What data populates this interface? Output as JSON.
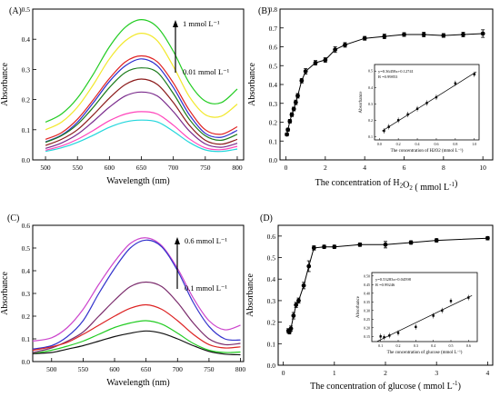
{
  "chart_data": [
    {
      "panel": "(A)",
      "type": "line",
      "xlabel": "Wavelength (nm)",
      "ylabel": "Absorbance",
      "xlim": [
        480,
        810
      ],
      "ylim": [
        0,
        0.5
      ],
      "xticks": [
        500,
        550,
        600,
        650,
        700,
        750,
        800
      ],
      "yticks": [
        0.0,
        0.1,
        0.2,
        0.3,
        0.4,
        0.5
      ],
      "x": [
        500,
        525,
        550,
        575,
        600,
        625,
        650,
        675,
        700,
        725,
        750,
        775,
        800
      ],
      "annotations": [
        {
          "text": "1 mmol L⁻¹"
        },
        {
          "text": "0.01 mmol L⁻¹"
        }
      ],
      "series": [
        {
          "color": "#22cc22",
          "values": [
            0.125,
            0.152,
            0.205,
            0.285,
            0.375,
            0.44,
            0.465,
            0.44,
            0.36,
            0.255,
            0.195,
            0.19,
            0.235
          ]
        },
        {
          "color": "#f2e82b",
          "values": [
            0.1,
            0.125,
            0.175,
            0.25,
            0.335,
            0.395,
            0.42,
            0.395,
            0.31,
            0.21,
            0.15,
            0.145,
            0.185
          ]
        },
        {
          "color": "#e02020",
          "values": [
            0.068,
            0.09,
            0.135,
            0.2,
            0.27,
            0.325,
            0.345,
            0.325,
            0.255,
            0.165,
            0.1,
            0.085,
            0.11
          ]
        },
        {
          "color": "#2c2ccc",
          "values": [
            0.06,
            0.082,
            0.125,
            0.19,
            0.26,
            0.312,
            0.335,
            0.312,
            0.24,
            0.15,
            0.088,
            0.075,
            0.098
          ]
        },
        {
          "color": "#1a7a1a",
          "values": [
            0.058,
            0.08,
            0.118,
            0.175,
            0.24,
            0.29,
            0.305,
            0.29,
            0.22,
            0.135,
            0.08,
            0.065,
            0.085
          ]
        },
        {
          "color": "#8b1a1a",
          "values": [
            0.048,
            0.068,
            0.1,
            0.15,
            0.205,
            0.25,
            0.268,
            0.25,
            0.19,
            0.115,
            0.065,
            0.052,
            0.068
          ]
        },
        {
          "color": "#7a2b8c",
          "values": [
            0.038,
            0.056,
            0.085,
            0.128,
            0.175,
            0.212,
            0.225,
            0.212,
            0.16,
            0.096,
            0.053,
            0.042,
            0.055
          ]
        },
        {
          "color": "#ff44bb",
          "values": [
            0.032,
            0.046,
            0.068,
            0.098,
            0.13,
            0.152,
            0.16,
            0.152,
            0.115,
            0.07,
            0.04,
            0.034,
            0.045
          ]
        },
        {
          "color": "#22d6dc",
          "values": [
            0.028,
            0.04,
            0.058,
            0.082,
            0.108,
            0.126,
            0.132,
            0.126,
            0.095,
            0.058,
            0.033,
            0.028,
            0.036
          ]
        }
      ]
    },
    {
      "panel": "(B)",
      "type": "line",
      "xlabel_main": "The concentration of H",
      "xlabel_sub": "2",
      "xlabel_mid": "O",
      "xlabel_sub2": "2",
      "xlabel_end": " ( mmol L",
      "xlabel_sup": "-1",
      "xlabel_close": ")",
      "ylabel": "Absorbance",
      "xlim": [
        -0.3,
        10.5
      ],
      "ylim": [
        0.0,
        0.8
      ],
      "xticks": [
        0,
        2,
        4,
        6,
        8,
        10
      ],
      "yticks": [
        0.0,
        0.1,
        0.2,
        0.3,
        0.4,
        0.5,
        0.6,
        0.7,
        0.8
      ],
      "x": [
        0.05,
        0.1,
        0.2,
        0.3,
        0.4,
        0.5,
        0.6,
        0.8,
        1.0,
        1.5,
        2.0,
        2.5,
        3.0,
        4.0,
        5.0,
        6.0,
        7.0,
        8.0,
        9.0,
        10.0
      ],
      "values": [
        0.135,
        0.16,
        0.205,
        0.24,
        0.27,
        0.305,
        0.34,
        0.42,
        0.47,
        0.515,
        0.53,
        0.585,
        0.61,
        0.645,
        0.655,
        0.665,
        0.665,
        0.66,
        0.665,
        0.67
      ],
      "errors": [
        0.008,
        0.008,
        0.01,
        0.01,
        0.01,
        0.012,
        0.012,
        0.012,
        0.015,
        0.012,
        0.012,
        0.015,
        0.012,
        0.01,
        0.012,
        0.01,
        0.012,
        0.01,
        0.012,
        0.02
      ],
      "inset": {
        "xlabel": "The concentration of H2O2 (mmol L⁻¹)",
        "ylabel": "Absorbance",
        "equation": "y=0.36458x+0.12741",
        "r": "R =0.99853",
        "xlim": [
          -0.05,
          1.05
        ],
        "ylim": [
          0.08,
          0.54
        ],
        "xticks": [
          "0.0",
          "0.2",
          "0.4",
          "0.6",
          "0.8",
          "1.0"
        ],
        "yticks": [
          "0.1",
          "0.2",
          "0.3",
          "0.4",
          "0.5"
        ],
        "x": [
          0.05,
          0.1,
          0.2,
          0.3,
          0.4,
          0.5,
          0.6,
          0.8,
          1.0
        ],
        "values": [
          0.135,
          0.16,
          0.2,
          0.235,
          0.27,
          0.305,
          0.34,
          0.425,
          0.48
        ]
      }
    },
    {
      "panel": "(C)",
      "type": "line",
      "xlabel": "Wavelength (nm)",
      "ylabel": "Absorbance",
      "xlim": [
        470,
        805
      ],
      "ylim": [
        0.0,
        0.6
      ],
      "xticks": [
        500,
        550,
        600,
        650,
        700,
        750,
        800
      ],
      "yticks": [
        0.0,
        0.1,
        0.2,
        0.3,
        0.4,
        0.5,
        0.6
      ],
      "x": [
        470,
        500,
        525,
        550,
        575,
        600,
        625,
        650,
        675,
        700,
        725,
        750,
        775,
        800
      ],
      "annotations": [
        {
          "text": "0.6 mmol L⁻¹"
        },
        {
          "text": "0.1 mmol L⁻¹"
        }
      ],
      "series": [
        {
          "color": "#cc44cc",
          "values": [
            0.09,
            0.105,
            0.15,
            0.23,
            0.34,
            0.44,
            0.52,
            0.545,
            0.51,
            0.41,
            0.28,
            0.18,
            0.14,
            0.16
          ]
        },
        {
          "color": "#3333cc",
          "values": [
            0.055,
            0.07,
            0.11,
            0.18,
            0.3,
            0.41,
            0.5,
            0.535,
            0.505,
            0.4,
            0.26,
            0.155,
            0.1,
            0.095
          ]
        },
        {
          "color": "#7a2b6c",
          "values": [
            0.04,
            0.06,
            0.09,
            0.13,
            0.2,
            0.27,
            0.33,
            0.35,
            0.33,
            0.26,
            0.17,
            0.1,
            0.075,
            0.08
          ]
        },
        {
          "color": "#dd2222",
          "values": [
            0.05,
            0.065,
            0.085,
            0.12,
            0.16,
            0.2,
            0.235,
            0.25,
            0.23,
            0.18,
            0.12,
            0.075,
            0.06,
            0.065
          ]
        },
        {
          "color": "#22cc22",
          "values": [
            0.035,
            0.05,
            0.068,
            0.09,
            0.12,
            0.15,
            0.17,
            0.18,
            0.165,
            0.125,
            0.08,
            0.05,
            0.04,
            0.042
          ]
        },
        {
          "color": "#111111",
          "values": [
            0.035,
            0.04,
            0.055,
            0.07,
            0.09,
            0.11,
            0.125,
            0.135,
            0.125,
            0.1,
            0.07,
            0.045,
            0.033,
            0.03
          ]
        }
      ]
    },
    {
      "panel": "(D)",
      "type": "line",
      "xlabel_main": "The concentration of glucose ( mmol L",
      "xlabel_sup": "-1",
      "xlabel_close": ")",
      "ylabel": "Absorbance",
      "xlim": [
        -0.1,
        4.1
      ],
      "ylim": [
        0.0,
        0.65
      ],
      "xticks": [
        0,
        1,
        2,
        3,
        4
      ],
      "yticks": [
        0.0,
        0.1,
        0.2,
        0.3,
        0.4,
        0.5,
        0.6
      ],
      "x": [
        0.1,
        0.12,
        0.15,
        0.2,
        0.25,
        0.3,
        0.4,
        0.5,
        0.6,
        0.8,
        1.0,
        1.5,
        2.0,
        2.5,
        3.0,
        4.0
      ],
      "values": [
        0.16,
        0.155,
        0.17,
        0.23,
        0.28,
        0.3,
        0.37,
        0.46,
        0.545,
        0.55,
        0.55,
        0.56,
        0.56,
        0.57,
        0.58,
        0.59
      ],
      "errors": [
        0.01,
        0.01,
        0.012,
        0.015,
        0.012,
        0.012,
        0.015,
        0.025,
        0.01,
        0.008,
        0.008,
        0.008,
        0.015,
        0.008,
        0.008,
        0.008
      ],
      "inset": {
        "xlabel": "The concentration of glucose (mmol L⁻¹)",
        "ylabel": "Absorbance",
        "equation": "y=0.53283x+0.04598",
        "r": "R =0.99246",
        "xlim": [
          0.05,
          0.65
        ],
        "ylim": [
          0.12,
          0.52
        ],
        "xticks": [
          "0.1",
          "0.2",
          "0.3",
          "0.4",
          "0.5",
          "0.6"
        ],
        "yticks": [
          "0.15",
          "0.20",
          "0.25",
          "0.30",
          "0.35",
          "0.40",
          "0.45",
          "0.50"
        ],
        "x": [
          0.1,
          0.12,
          0.15,
          0.2,
          0.3,
          0.4,
          0.45,
          0.5,
          0.6
        ],
        "values": [
          0.15,
          0.145,
          0.155,
          0.17,
          0.205,
          0.27,
          0.3,
          0.355,
          0.375
        ]
      }
    }
  ],
  "annotations": [
    {
      "text": "1 mmol L⁻¹"
    },
    {
      "text": "0.01 mmol L⁻¹"
    },
    {
      "text": "0.6 mmol L⁻¹"
    },
    {
      "text": "0.1 mmol L⁻¹"
    }
  ]
}
